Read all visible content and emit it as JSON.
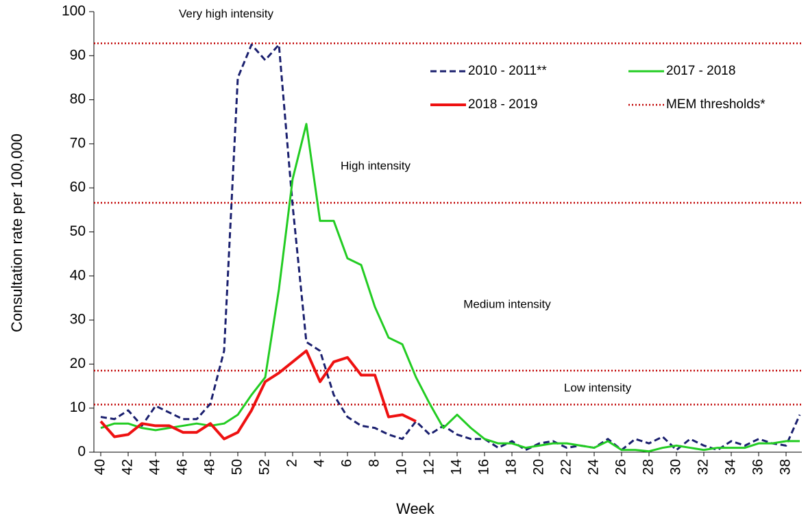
{
  "chart_data": {
    "type": "line",
    "x_label": "Week",
    "y_label": "Consultation rate per 100,000",
    "categories": [
      "40",
      null,
      "42",
      null,
      "44",
      null,
      "46",
      null,
      "48",
      null,
      "50",
      null,
      "52",
      null,
      "2",
      null,
      "4",
      null,
      "6",
      null,
      "8",
      null,
      "10",
      null,
      "12",
      null,
      "14",
      null,
      "16",
      null,
      "18",
      null,
      "20",
      null,
      "22",
      null,
      "24",
      null,
      "26",
      null,
      "28",
      null,
      "30",
      null,
      "32",
      null,
      "34",
      null,
      "36",
      null,
      "38",
      null
    ],
    "ylim": [
      0,
      100
    ],
    "yticks": [
      0,
      10,
      20,
      30,
      40,
      50,
      60,
      70,
      80,
      90,
      100
    ],
    "series": [
      {
        "name": "2010 - 2011**",
        "color": "#1a1f6e",
        "dash": true,
        "values": [
          8,
          7.5,
          9.5,
          6,
          10.5,
          9,
          7.5,
          7.5,
          11,
          23,
          85,
          92.5,
          89,
          92.5,
          56,
          25,
          23,
          13,
          8,
          6,
          5.5,
          4,
          3,
          7,
          4,
          6,
          4,
          3,
          3,
          1,
          2.5,
          0.5,
          2,
          2.5,
          1,
          1.5,
          1,
          3,
          0.5,
          3,
          2,
          3.5,
          0.5,
          3,
          1.5,
          0.5,
          2.5,
          1.5,
          3,
          2,
          1.5,
          8.5
        ]
      },
      {
        "name": "2017 - 2018",
        "color": "#22cc22",
        "dash": false,
        "values": [
          5.5,
          6.5,
          6.5,
          5.5,
          5,
          5.5,
          6,
          6.5,
          6,
          6.5,
          8.5,
          13,
          17,
          37,
          62,
          74.5,
          52.5,
          52.5,
          44,
          42.5,
          33,
          26,
          24.5,
          17,
          11,
          5.5,
          8.5,
          5.5,
          3,
          2,
          2,
          1,
          1.5,
          2,
          2,
          1.5,
          1,
          2.5,
          0.5,
          0.5,
          0.2,
          1,
          1.5,
          1,
          0.5,
          1,
          1,
          1,
          2,
          2,
          2.5,
          2.5
        ]
      },
      {
        "name": "2018 - 2019",
        "color": "#ee1111",
        "dash": false,
        "values": [
          7,
          3.5,
          4,
          6.5,
          6,
          6,
          4.5,
          4.5,
          6.5,
          3,
          4.5,
          9.5,
          16,
          18,
          20.5,
          23,
          16,
          20.5,
          21.5,
          17.5,
          17.5,
          8,
          8.5,
          7,
          null,
          null,
          null,
          null,
          null,
          null,
          null,
          null,
          null,
          null,
          null,
          null,
          null,
          null,
          null,
          null,
          null,
          null,
          null,
          null,
          null,
          null,
          null,
          null,
          null,
          null,
          null,
          null
        ]
      }
    ],
    "thresholds": {
      "name": "MEM thresholds*",
      "color": "#c00000",
      "values": [
        10.8,
        18.5,
        56.6,
        92.8
      ]
    },
    "annotations": [
      "Very high intensity",
      "High intensity",
      "Medium intensity",
      "Low intensity"
    ]
  }
}
